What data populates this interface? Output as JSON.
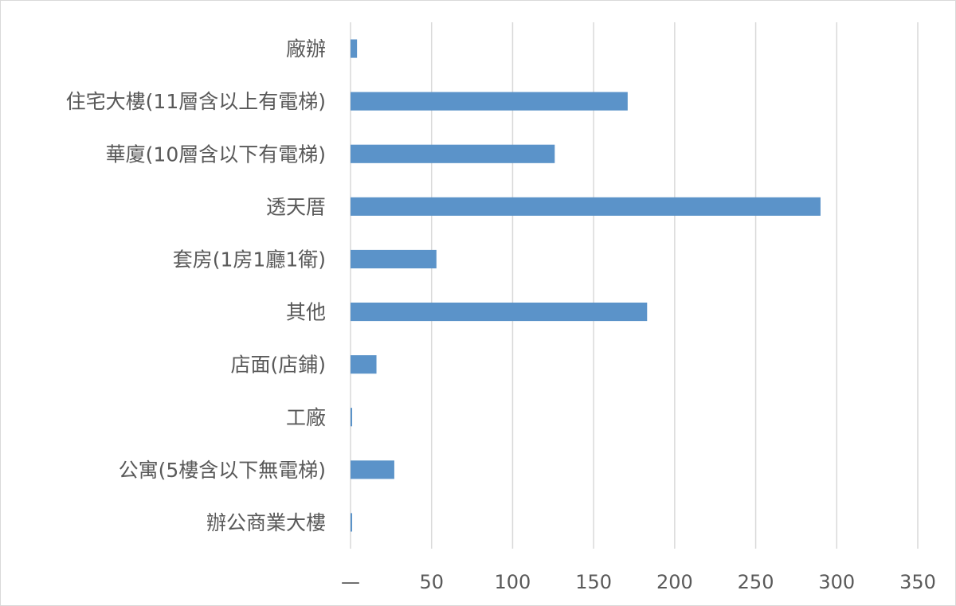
{
  "chart_data": {
    "type": "bar",
    "orientation": "horizontal",
    "categories": [
      "廠辦",
      "住宅大樓(11層含以上有電梯)",
      "華廈(10層含以下有電梯)",
      "透天厝",
      "套房(1房1廳1衛)",
      "其他",
      "店面(店鋪)",
      "工廠",
      "公寓(5樓含以下無電梯)",
      "辦公商業大樓"
    ],
    "values": [
      4,
      171,
      126,
      290,
      53,
      183,
      16,
      1,
      27,
      1
    ],
    "xlim": [
      0,
      350
    ],
    "x_ticks": [
      0,
      50,
      100,
      150,
      200,
      250,
      300,
      350
    ],
    "x_tick_labels": [
      "—",
      "50",
      "100",
      "150",
      "200",
      "250",
      "300",
      "350"
    ],
    "title": "",
    "xlabel": "",
    "ylabel": "",
    "grid": "vertical",
    "legend": "none",
    "bar_color": "#5b93c9",
    "grid_color": "#d9d9d9",
    "text_color": "#595959"
  }
}
